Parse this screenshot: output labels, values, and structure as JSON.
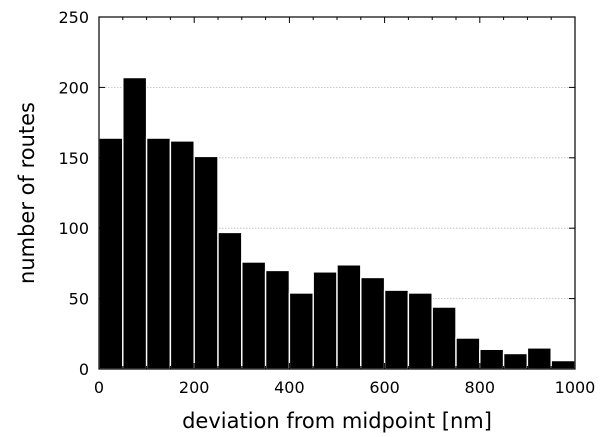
{
  "chart_data": {
    "type": "bar",
    "title": "",
    "xlabel": "deviation from midpoint [nm]",
    "ylabel": "number of routes",
    "xlim": [
      0,
      1000
    ],
    "ylim": [
      0,
      250
    ],
    "grid": true,
    "bin_width": 50,
    "bins_start": [
      0,
      50,
      100,
      150,
      200,
      250,
      300,
      350,
      400,
      450,
      500,
      550,
      600,
      650,
      700,
      750,
      800,
      850,
      900,
      950
    ],
    "values": [
      164,
      207,
      164,
      162,
      151,
      97,
      76,
      70,
      54,
      69,
      74,
      65,
      56,
      54,
      44,
      22,
      14,
      11,
      15,
      6
    ],
    "xticks": [
      0,
      200,
      400,
      600,
      800,
      1000
    ],
    "xtick_labels": [
      "0",
      "200",
      "400",
      "600",
      "800",
      "1000"
    ],
    "yticks": [
      0,
      50,
      100,
      150,
      200,
      250
    ],
    "ytick_labels": [
      "0",
      "50",
      "100",
      "150",
      "200",
      "250"
    ],
    "bar_color": "#000000",
    "grid_color": "#b8b8b8"
  }
}
